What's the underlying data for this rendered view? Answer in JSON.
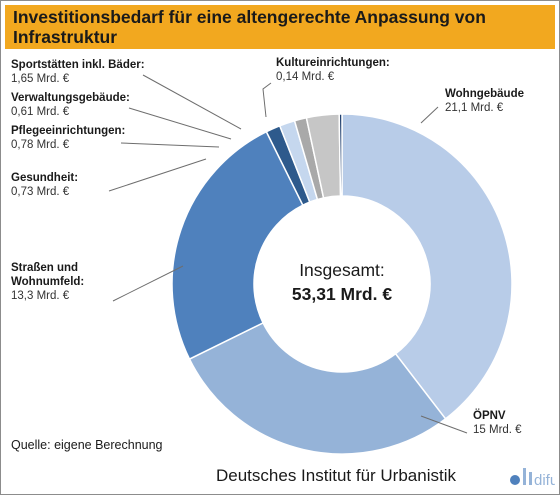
{
  "header": {
    "title": "Investitionsbedarf für eine altengerechte Anpassung von Infrastruktur"
  },
  "chart_data": {
    "type": "pie",
    "title": "Investitionsbedarf für eine altengerechte Anpassung von Infrastruktur",
    "unit": "Mrd. €",
    "total_label": "Insgesamt:",
    "total_value": "53,31 Mrd. €",
    "slices": [
      {
        "name": "Wohngebäude",
        "value": 21.1,
        "value_label": "21,1 Mrd. €",
        "color": "#b8cce8"
      },
      {
        "name": "ÖPNV",
        "value": 15,
        "value_label": "15 Mrd. €",
        "color": "#95b3d8"
      },
      {
        "name": "Straßen und Wohnumfeld:",
        "value": 13.3,
        "value_label": "13,3 Mrd. €",
        "color": "#4f81bd"
      },
      {
        "name": "Gesundheit:",
        "value": 0.73,
        "value_label": "0,73 Mrd. €",
        "color": "#2e5a8c"
      },
      {
        "name": "Pflegeeinrichtungen:",
        "value": 0.78,
        "value_label": "0,78 Mrd. €",
        "color": "#c5d7ee"
      },
      {
        "name": "Verwaltungsgebäude:",
        "value": 0.61,
        "value_label": "0,61 Mrd. €",
        "color": "#a9a9a9"
      },
      {
        "name": "Sportstätten inkl. Bäder:",
        "value": 1.65,
        "value_label": "1,65 Mrd. €",
        "color": "#c6c6c6"
      },
      {
        "name": "Kultureinrichtungen:",
        "value": 0.14,
        "value_label": "0,14 Mrd. €",
        "color": "#1f3f6e"
      }
    ]
  },
  "footer": {
    "source": "Quelle: eigene Berechnung",
    "institute": "Deutsches Institut für Urbanistik",
    "logo_text": "difu",
    "logo_colors": [
      "#4f81bd",
      "#95b3d8",
      "#b8cce8"
    ]
  }
}
